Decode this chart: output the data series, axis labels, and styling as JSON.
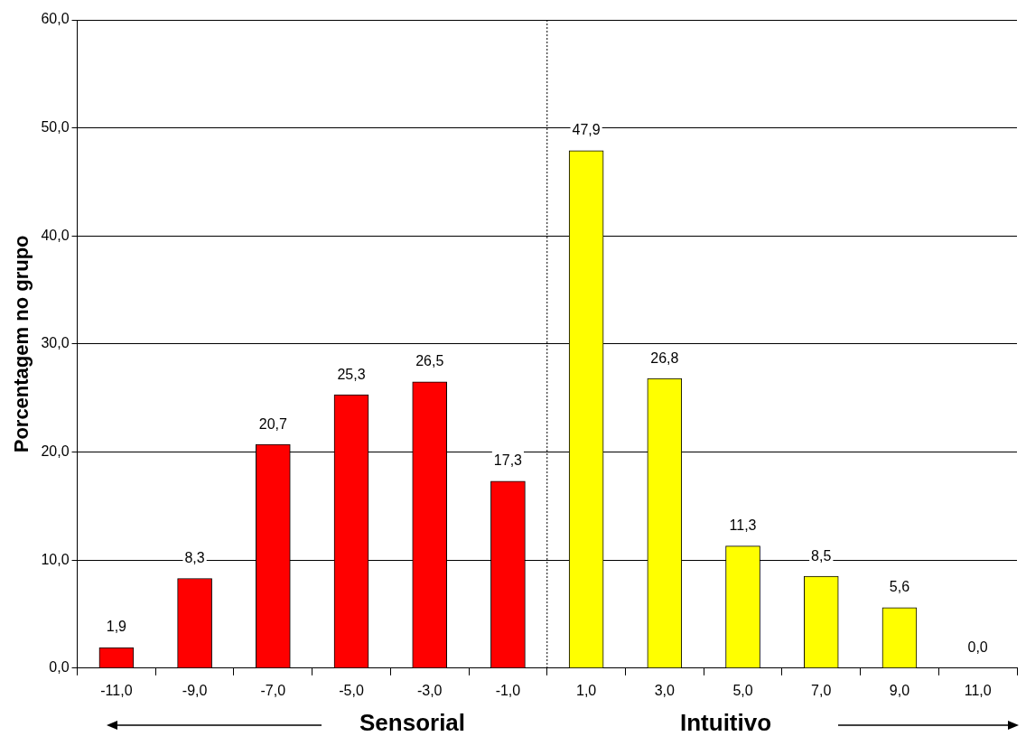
{
  "chart_data": {
    "type": "bar",
    "x": [
      -11,
      -9,
      -7,
      -5,
      -3,
      -1,
      1,
      3,
      5,
      7,
      9,
      11
    ],
    "values": [
      1.9,
      8.3,
      20.7,
      25.3,
      26.5,
      17.3,
      47.9,
      26.8,
      11.3,
      8.5,
      5.6,
      0.0
    ],
    "colors": [
      "#ff0000",
      "#ff0000",
      "#ff0000",
      "#ff0000",
      "#ff0000",
      "#ff0000",
      "#ffff00",
      "#ffff00",
      "#ffff00",
      "#ffff00",
      "#ffff00",
      "#ffff00"
    ],
    "value_labels": [
      "1,9",
      "8,3",
      "20,7",
      "25,3",
      "26,5",
      "17,3",
      "47,9",
      "26,8",
      "11,3",
      "8,5",
      "5,6",
      "0,0"
    ],
    "xlim": [
      -12,
      12
    ],
    "xticks": [
      {
        "value": -11,
        "label": "-11,0"
      },
      {
        "value": -9,
        "label": "-9,0"
      },
      {
        "value": -7,
        "label": "-7,0"
      },
      {
        "value": -5,
        "label": "-5,0"
      },
      {
        "value": -3,
        "label": "-3,0"
      },
      {
        "value": -1,
        "label": "-1,0"
      },
      {
        "value": 1,
        "label": "1,0"
      },
      {
        "value": 3,
        "label": "3,0"
      },
      {
        "value": 5,
        "label": "5,0"
      },
      {
        "value": 7,
        "label": "7,0"
      },
      {
        "value": 9,
        "label": "9,0"
      },
      {
        "value": 11,
        "label": "11,0"
      }
    ],
    "ylim": [
      0,
      60
    ],
    "yticks": [
      {
        "value": 0,
        "label": "0,0"
      },
      {
        "value": 10,
        "label": "10,0"
      },
      {
        "value": 20,
        "label": "20,0"
      },
      {
        "value": 30,
        "label": "30,0"
      },
      {
        "value": 40,
        "label": "40,0"
      },
      {
        "value": 50,
        "label": "50,0"
      },
      {
        "value": 60,
        "label": "60,0"
      }
    ],
    "ylabel": "Porcentagem no grupo",
    "grid": "y",
    "ref_lines": [
      {
        "axis": "x",
        "value": 0,
        "label": null,
        "color": "#000000",
        "line_style": "dotted"
      }
    ],
    "annotations": [
      "Sensorial",
      "Intuitivo"
    ]
  }
}
